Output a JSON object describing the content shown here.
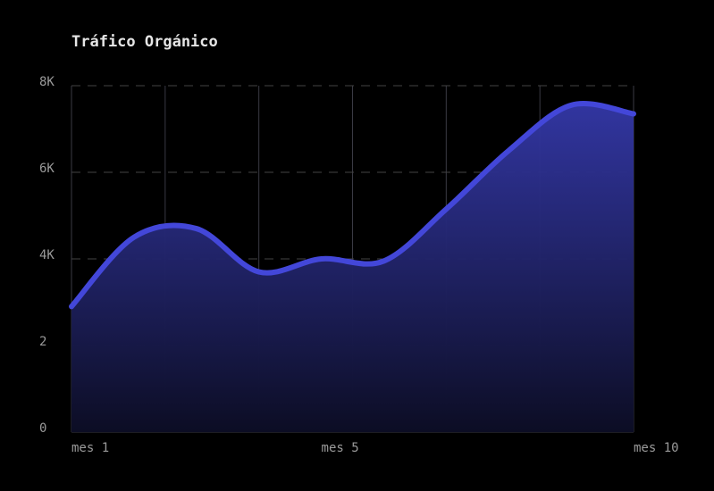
{
  "chart_data": {
    "type": "area",
    "title": "Tráfico Orgánico",
    "categories": [
      "mes 1",
      null,
      null,
      null,
      "mes 5",
      null,
      null,
      null,
      null,
      "mes 10"
    ],
    "values": [
      2900,
      4500,
      4700,
      3700,
      4000,
      3950,
      5150,
      6500,
      7550,
      7350
    ],
    "color": "#4347d9",
    "ylim": [
      0,
      8000
    ],
    "yticks": [
      0,
      {
        "value": 2000,
        "label": "2"
      },
      {
        "value": 4000,
        "label": "4K"
      },
      {
        "value": 6000,
        "label": "6K"
      },
      {
        "value": 8000,
        "label": "8K"
      }
    ],
    "grid": true
  }
}
